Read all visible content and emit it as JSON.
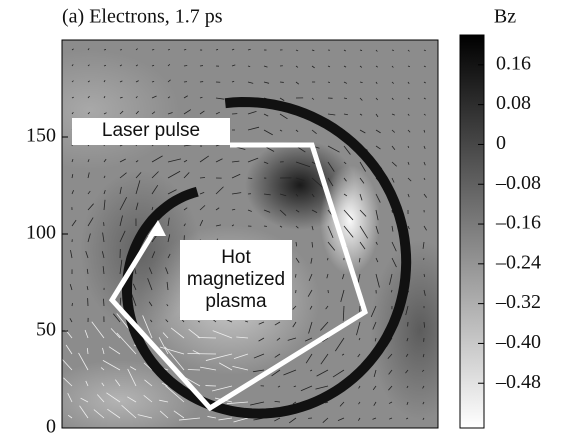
{
  "chart_data": {
    "type": "heatmap",
    "title": "(a) Electrons, 1.7 ps",
    "ylim": [
      0,
      200
    ],
    "yticks": [
      0,
      50,
      100,
      150
    ],
    "colorbar": {
      "label": "Bz",
      "lim": [
        -0.57,
        0.22
      ],
      "ticks": [
        0.16,
        0.08,
        0,
        {
          "value": -0.08,
          "label": "–0.08"
        },
        {
          "value": -0.16,
          "label": "–0.16"
        },
        {
          "value": -0.24,
          "label": "–0.24"
        },
        {
          "value": -0.32,
          "label": "–0.32"
        },
        {
          "value": -0.4,
          "label": "–0.40"
        },
        {
          "value": -0.48,
          "label": "–0.48"
        }
      ]
    },
    "annotations": [
      {
        "lines": [
          "Laser pulse"
        ]
      },
      {
        "lines": [
          "Hot",
          "magnetized",
          "plasma"
        ]
      }
    ]
  }
}
